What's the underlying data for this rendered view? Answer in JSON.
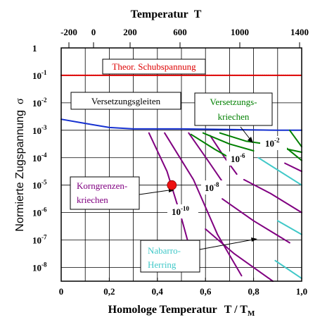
{
  "chart_data": {
    "type": "line",
    "title": "",
    "top_axis": {
      "label": "Temperatur",
      "symbol": "T",
      "ticks": [
        "-200",
        "0",
        "200",
        "600",
        "1000",
        "1400"
      ]
    },
    "x_axis": {
      "label": "Homologe Temperatur",
      "label_math": "T / T",
      "label_sub": "M",
      "xlim": [
        0,
        1
      ],
      "ticks": [
        {
          "value": 0,
          "label": "0"
        },
        {
          "value": 0.2,
          "label": "0,2"
        },
        {
          "value": 0.4,
          "label": "0,4"
        },
        {
          "value": 0.6,
          "label": "0,6"
        },
        {
          "value": 0.8,
          "label": "0,8"
        },
        {
          "value": 1.0,
          "label": "1,0"
        }
      ],
      "gridlines": [
        0.1,
        0.2,
        0.3,
        0.4,
        0.5,
        0.6,
        0.7,
        0.8,
        0.9
      ]
    },
    "y_axis": {
      "label": "Normierte Zugspannung",
      "symbol": "σ",
      "scale": "log",
      "ylim_exponent": [
        -8.5,
        0
      ],
      "ticks": [
        {
          "exp": 0,
          "base": "1",
          "sup": ""
        },
        {
          "exp": -1,
          "base": "10",
          "sup": "-1"
        },
        {
          "exp": -2,
          "base": "10",
          "sup": "-2"
        },
        {
          "exp": -3,
          "base": "10",
          "sup": "-3"
        },
        {
          "exp": -4,
          "base": "10",
          "sup": "-4"
        },
        {
          "exp": -5,
          "base": "10",
          "sup": "-5"
        },
        {
          "exp": -6,
          "base": "10",
          "sup": "-6"
        },
        {
          "exp": -7,
          "base": "10",
          "sup": "-7"
        },
        {
          "exp": -8,
          "base": "10",
          "sup": "-8"
        }
      ]
    },
    "grid": true,
    "series": [
      {
        "color": "#dd0000",
        "dash": "2,1",
        "points": [
          [
            0.0,
            -1.0
          ],
          [
            1.0,
            -1.0
          ]
        ]
      },
      {
        "color": "#1530d0",
        "points": [
          [
            0.0,
            -2.6
          ],
          [
            0.1,
            -2.75
          ],
          [
            0.2,
            -2.9
          ],
          [
            0.3,
            -2.95
          ],
          [
            0.5,
            -2.95
          ],
          [
            0.7,
            -2.97
          ],
          [
            0.9,
            -3.0
          ],
          [
            1.0,
            -3.0
          ]
        ]
      },
      {
        "color": "#800080",
        "points": [
          [
            0.365,
            -3.1
          ],
          [
            0.44,
            -4.5
          ],
          [
            0.5,
            -6.2
          ],
          [
            0.525,
            -7.0
          ]
        ]
      },
      {
        "color": "#800080",
        "points": [
          [
            0.43,
            -3.1
          ],
          [
            0.55,
            -4.8
          ],
          [
            0.65,
            -6.8
          ],
          [
            0.75,
            -8.3
          ]
        ]
      },
      {
        "color": "#800080",
        "points": [
          [
            0.53,
            -3.1
          ],
          [
            0.61,
            -4.1
          ],
          [
            0.68,
            -5.0
          ]
        ]
      },
      {
        "color": "#800080",
        "points": [
          [
            0.62,
            -3.2
          ],
          [
            0.68,
            -4.0
          ],
          [
            0.73,
            -4.6
          ]
        ]
      },
      {
        "color": "#800080",
        "points": [
          [
            0.6,
            -6.6
          ],
          [
            0.72,
            -7.5
          ],
          [
            0.88,
            -8.5
          ]
        ]
      },
      {
        "color": "#800080",
        "points": [
          [
            0.67,
            -5.5
          ],
          [
            0.8,
            -6.3
          ],
          [
            0.95,
            -7.1
          ]
        ]
      },
      {
        "color": "#800080",
        "points": [
          [
            0.76,
            -4.8
          ],
          [
            0.87,
            -5.3
          ],
          [
            1.0,
            -6.0
          ]
        ]
      },
      {
        "color": "#800080",
        "points": [
          [
            0.93,
            -4.2
          ],
          [
            1.0,
            -4.5
          ]
        ]
      },
      {
        "color": "#008000",
        "points": [
          [
            0.54,
            -3.15
          ],
          [
            0.64,
            -3.7
          ],
          [
            0.71,
            -4.05
          ]
        ]
      },
      {
        "color": "#008000",
        "points": [
          [
            0.59,
            -3.1
          ],
          [
            0.7,
            -3.5
          ],
          [
            0.8,
            -3.75
          ]
        ]
      },
      {
        "color": "#008000",
        "points": [
          [
            0.66,
            -3.1
          ],
          [
            0.77,
            -3.4
          ],
          [
            0.85,
            -3.5
          ]
        ]
      },
      {
        "color": "#008000",
        "points": [
          [
            0.84,
            -3.5
          ],
          [
            0.92,
            -3.65
          ],
          [
            1.0,
            -3.8
          ]
        ]
      },
      {
        "color": "#008000",
        "points": [
          [
            0.85,
            -3.3
          ],
          [
            0.93,
            -3.6
          ],
          [
            1.0,
            -4.1
          ]
        ]
      },
      {
        "color": "#008000",
        "points": [
          [
            0.95,
            -3.0
          ],
          [
            1.0,
            -3.6
          ]
        ]
      },
      {
        "color": "#40c8c8",
        "points": [
          [
            0.82,
            -4.0
          ],
          [
            1.0,
            -5.0
          ]
        ]
      },
      {
        "color": "#40c8c8",
        "points": [
          [
            0.9,
            -6.3
          ],
          [
            1.0,
            -6.8
          ]
        ]
      },
      {
        "color": "#40c8c8",
        "points": [
          [
            0.89,
            -7.75
          ],
          [
            1.0,
            -8.4
          ]
        ]
      }
    ],
    "marker": {
      "x": 0.46,
      "exp": -5.0,
      "color": "#ee1111"
    },
    "region_labels": [
      {
        "lines": [
          "Theor. Schubspannung"
        ],
        "color": "#dd0000",
        "box": true
      },
      {
        "lines": [
          "Versetzungsgleiten"
        ],
        "color": "#000000",
        "box": true
      },
      {
        "lines": [
          "Versetzungs-",
          "kriechen"
        ],
        "color": "#008000",
        "box": true
      },
      {
        "lines": [
          "Korngrenzen-",
          "kriechen"
        ],
        "color": "#800080",
        "box": true
      },
      {
        "lines": [
          "Nabarro-",
          "Herring"
        ],
        "color": "#40c8c8",
        "box": true
      }
    ],
    "rate_labels": [
      {
        "base": "10",
        "sup": "-2"
      },
      {
        "base": "10",
        "sup": "-6"
      },
      {
        "base": "10",
        "sup": "-8"
      },
      {
        "base": "10",
        "sup": "-10"
      }
    ]
  }
}
